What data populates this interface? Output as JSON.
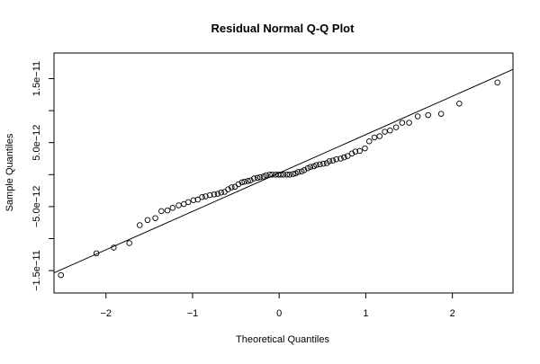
{
  "chart_data": {
    "type": "scatter",
    "title": "Residual Normal Q-Q Plot",
    "xlabel": "Theoretical Quantiles",
    "ylabel": "Sample Quantiles",
    "xlim": [
      -2.6,
      2.7
    ],
    "ylim": [
      -1.85e-11,
      1.9e-11
    ],
    "x_ticks": [
      {
        "value": -2,
        "label": "−2"
      },
      {
        "value": -1,
        "label": "−1"
      },
      {
        "value": 0,
        "label": "0"
      },
      {
        "value": 1,
        "label": "1"
      },
      {
        "value": 2,
        "label": "2"
      }
    ],
    "y_ticks": [
      {
        "value": -1.5e-11,
        "label": "−1.5e−11"
      },
      {
        "value": -1e-11,
        "label": ""
      },
      {
        "value": -5e-12,
        "label": "−5.0e−12"
      },
      {
        "value": 0,
        "label": ""
      },
      {
        "value": 5e-12,
        "label": "5.0e−12"
      },
      {
        "value": 1e-11,
        "label": ""
      },
      {
        "value": 1.5e-11,
        "label": "1.5e−11"
      }
    ],
    "points": [
      [
        -2.52,
        -1.57e-11
      ],
      [
        -2.11,
        -1.23e-11
      ],
      [
        -1.91,
        -1.14e-11
      ],
      [
        -1.73,
        -1.07e-11
      ],
      [
        -1.61,
        -7.9e-12
      ],
      [
        -1.52,
        -7.1e-12
      ],
      [
        -1.43,
        -6.8e-12
      ],
      [
        -1.36,
        -5.7e-12
      ],
      [
        -1.29,
        -5.6e-12
      ],
      [
        -1.23,
        -5.2e-12
      ],
      [
        -1.16,
        -4.8e-12
      ],
      [
        -1.1,
        -4.6e-12
      ],
      [
        -1.05,
        -4.3e-12
      ],
      [
        -0.99,
        -4e-12
      ],
      [
        -0.94,
        -3.9e-12
      ],
      [
        -0.89,
        -3.5e-12
      ],
      [
        -0.85,
        -3.4e-12
      ],
      [
        -0.8,
        -3.2e-12
      ],
      [
        -0.75,
        -3.1e-12
      ],
      [
        -0.71,
        -3e-12
      ],
      [
        -0.67,
        -2.8e-12
      ],
      [
        -0.63,
        -2.7e-12
      ],
      [
        -0.59,
        -2.3e-12
      ],
      [
        -0.55,
        -2e-12
      ],
      [
        -0.51,
        -1.9e-12
      ],
      [
        -0.47,
        -1.5e-12
      ],
      [
        -0.43,
        -1.2e-12
      ],
      [
        -0.4,
        -1.1e-12
      ],
      [
        -0.36,
        -1e-12
      ],
      [
        -0.33,
        -9e-13
      ],
      [
        -0.29,
        -6e-13
      ],
      [
        -0.25,
        -5e-13
      ],
      [
        -0.22,
        -4e-13
      ],
      [
        -0.18,
        -3e-13
      ],
      [
        -0.15,
        -1e-13
      ],
      [
        -0.11,
        0.0
      ],
      [
        -0.08,
        0.0
      ],
      [
        -0.04,
        0.0
      ],
      [
        -0.01,
        0.0
      ],
      [
        0.02,
        0.0
      ],
      [
        0.05,
        0.0
      ],
      [
        0.09,
        0.0
      ],
      [
        0.12,
        0.0
      ],
      [
        0.16,
        1e-13
      ],
      [
        0.19,
        2e-13
      ],
      [
        0.22,
        4e-13
      ],
      [
        0.26,
        5e-13
      ],
      [
        0.29,
        7e-13
      ],
      [
        0.33,
        1e-12
      ],
      [
        0.36,
        1.2e-12
      ],
      [
        0.4,
        1.3e-12
      ],
      [
        0.43,
        1.5e-12
      ],
      [
        0.47,
        1.6e-12
      ],
      [
        0.51,
        1.7e-12
      ],
      [
        0.55,
        1.8e-12
      ],
      [
        0.58,
        2.1e-12
      ],
      [
        0.62,
        2.2e-12
      ],
      [
        0.66,
        2.4e-12
      ],
      [
        0.71,
        2.5e-12
      ],
      [
        0.75,
        2.7e-12
      ],
      [
        0.79,
        2.9e-12
      ],
      [
        0.84,
        3.3e-12
      ],
      [
        0.88,
        3.6e-12
      ],
      [
        0.93,
        3.7e-12
      ],
      [
        0.99,
        4.1e-12
      ],
      [
        1.04,
        5.2e-12
      ],
      [
        1.1,
        5.8e-12
      ],
      [
        1.16,
        6e-12
      ],
      [
        1.22,
        6.7e-12
      ],
      [
        1.28,
        6.9e-12
      ],
      [
        1.35,
        7.4e-12
      ],
      [
        1.42,
        8.1e-12
      ],
      [
        1.5,
        8.1e-12
      ],
      [
        1.6,
        9.1e-12
      ],
      [
        1.72,
        9.3e-12
      ],
      [
        1.87,
        9.5e-12
      ],
      [
        2.08,
        1.11e-11
      ],
      [
        2.52,
        1.44e-11
      ]
    ],
    "reference_line": {
      "slope": 6e-12,
      "intercept": 2.5e-13
    },
    "grid": false,
    "legend": "none"
  }
}
